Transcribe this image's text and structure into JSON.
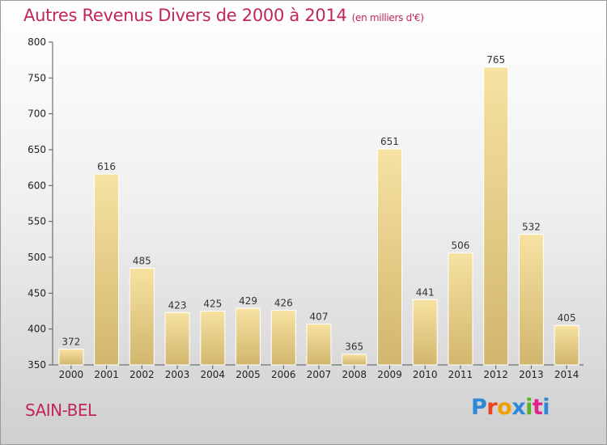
{
  "page": {
    "title": "Autres Revenus Divers de 2000 à 2014",
    "title_unit": "(en milliers d'€)",
    "place": "SAIN-BEL",
    "logo_text": "Proxiti"
  },
  "colors": {
    "title": "#c0265a",
    "bar_light": "#f7e2a2",
    "bar_dark": "#d1b66d",
    "axis": "#555555",
    "logo": [
      "#2e88d8",
      "#e9431f",
      "#f0a000",
      "#2e88d8",
      "#58b228",
      "#e0228a",
      "#2e88d8"
    ]
  },
  "chart_data": {
    "type": "bar",
    "categories": [
      "2000",
      "2001",
      "2002",
      "2003",
      "2004",
      "2005",
      "2006",
      "2007",
      "2008",
      "2009",
      "2010",
      "2011",
      "2012",
      "2013",
      "2014"
    ],
    "values": [
      372,
      616,
      485,
      423,
      425,
      429,
      426,
      407,
      365,
      651,
      441,
      506,
      765,
      532,
      405
    ],
    "ylim": [
      350,
      800
    ],
    "yticks": [
      350,
      400,
      450,
      500,
      550,
      600,
      650,
      700,
      750,
      800
    ],
    "grid": false,
    "legend": false
  }
}
